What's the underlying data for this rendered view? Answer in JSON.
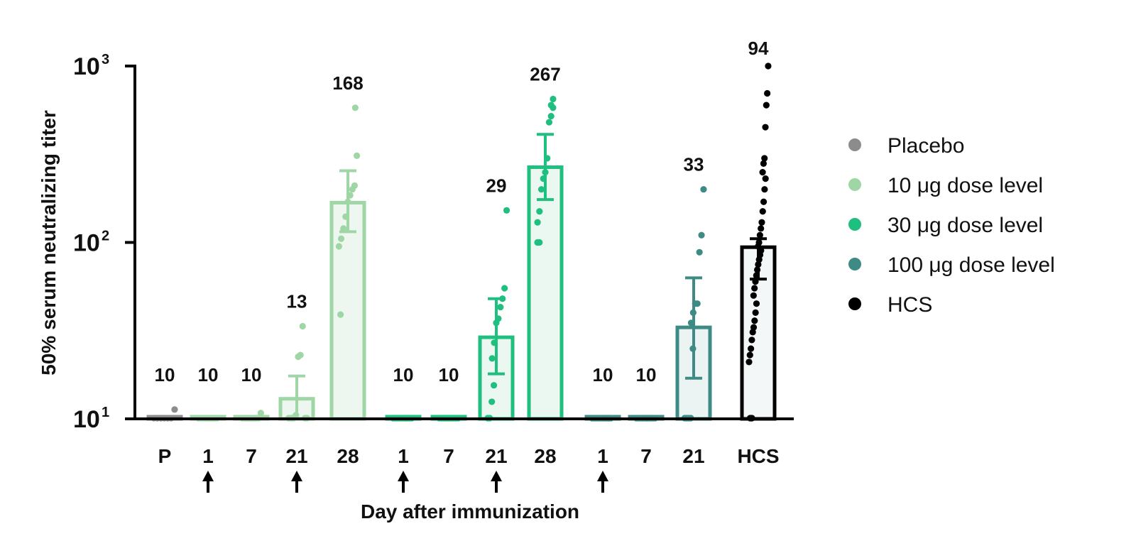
{
  "chart_data": {
    "type": "bar",
    "scale": "log",
    "ylabel": "50% serum neutralizing titer",
    "xlabel": "Day after immunization",
    "ylim": [
      10,
      1000
    ],
    "yticks": [
      {
        "value": 10,
        "base": "10",
        "exp": "1"
      },
      {
        "value": 100,
        "base": "10",
        "exp": "2"
      },
      {
        "value": 1000,
        "base": "10",
        "exp": "3"
      }
    ],
    "legend_position": "right",
    "legend": [
      {
        "key": "placebo",
        "label": "Placebo"
      },
      {
        "key": "d10",
        "label": "10 μg dose level"
      },
      {
        "key": "d30",
        "label": "30 μg dose level"
      },
      {
        "key": "d100",
        "label": "100 μg dose level"
      },
      {
        "key": "hcs",
        "label": "HCS"
      }
    ],
    "colors": {
      "placebo": "#8c8c8c",
      "d10": "#9fd6a6",
      "d30": "#1fbf7f",
      "d100": "#3e8a84",
      "hcs": "#000000"
    },
    "groups": [
      {
        "label": "P",
        "series": "placebo",
        "gmt": 10,
        "gmt_label": "10",
        "arrow": false,
        "points": [
          10,
          10,
          10,
          10,
          10,
          10,
          11.3
        ]
      },
      {
        "label": "1",
        "series": "d10",
        "gmt": 10,
        "gmt_label": "10",
        "arrow": true,
        "points": [
          10,
          10,
          10,
          10,
          10,
          10,
          10,
          10,
          10,
          10,
          10,
          10
        ]
      },
      {
        "label": "7",
        "series": "d10",
        "gmt": 10,
        "gmt_label": "10",
        "arrow": false,
        "points": [
          10,
          10,
          10,
          10,
          10,
          10,
          10,
          10,
          10,
          10,
          10.8
        ]
      },
      {
        "label": "21",
        "series": "d10",
        "gmt": 13,
        "gmt_label": "13",
        "arrow": true,
        "ci": [
          10,
          17.5
        ],
        "points": [
          10,
          10,
          10,
          10,
          10,
          10.5,
          22.5,
          23,
          33.5,
          10,
          10
        ]
      },
      {
        "label": "28",
        "series": "d10",
        "gmt": 168,
        "gmt_label": "168",
        "arrow": false,
        "ci": [
          115,
          255
        ],
        "points": [
          39,
          95,
          105,
          120,
          140,
          170,
          185,
          200,
          210,
          310,
          580
        ]
      },
      {
        "label": "1",
        "series": "d30",
        "gmt": 10,
        "gmt_label": "10",
        "arrow": true,
        "points": [
          10,
          10,
          10,
          10,
          10,
          10,
          10,
          10,
          10,
          10,
          10,
          10
        ]
      },
      {
        "label": "7",
        "series": "d30",
        "gmt": 10,
        "gmt_label": "10",
        "arrow": false,
        "points": [
          10,
          10,
          10,
          10,
          10,
          10,
          10,
          10,
          10,
          10,
          10,
          10
        ]
      },
      {
        "label": "21",
        "series": "d30",
        "gmt": 29,
        "gmt_label": "29",
        "arrow": true,
        "ci": [
          18,
          48
        ],
        "points": [
          10,
          10,
          12.5,
          15.5,
          22,
          27,
          35,
          37,
          43,
          48,
          55,
          152
        ]
      },
      {
        "label": "28",
        "series": "d30",
        "gmt": 267,
        "gmt_label": "267",
        "arrow": false,
        "ci": [
          175,
          410
        ],
        "points": [
          100,
          100,
          130,
          150,
          200,
          230,
          250,
          300,
          480,
          520,
          580,
          600,
          650
        ]
      },
      {
        "label": "1",
        "series": "d100",
        "gmt": 10,
        "gmt_label": "10",
        "arrow": true,
        "points": [
          10,
          10,
          10,
          10,
          10,
          10,
          10,
          10,
          10,
          10,
          10,
          10
        ]
      },
      {
        "label": "7",
        "series": "d100",
        "gmt": 10,
        "gmt_label": "10",
        "arrow": false,
        "points": [
          10,
          10,
          10,
          10,
          10,
          10,
          10,
          10,
          10,
          10,
          10,
          10
        ]
      },
      {
        "label": "21",
        "series": "d100",
        "gmt": 33,
        "gmt_label": "33",
        "arrow": false,
        "ci": [
          17,
          63
        ],
        "points": [
          10,
          10,
          10,
          10,
          25,
          35,
          40,
          45,
          45,
          88,
          110,
          200
        ]
      },
      {
        "label": "HCS",
        "series": "hcs",
        "gmt": 94,
        "gmt_label": "94",
        "arrow": false,
        "ci": [
          62,
          105
        ],
        "points": [
          10,
          10,
          10,
          21,
          23,
          25,
          28,
          31,
          33,
          36,
          40,
          45,
          50,
          55,
          60,
          65,
          70,
          75,
          80,
          85,
          90,
          95,
          100,
          110,
          120,
          130,
          150,
          170,
          200,
          230,
          250,
          280,
          300,
          450,
          600,
          700,
          1000
        ]
      }
    ]
  }
}
